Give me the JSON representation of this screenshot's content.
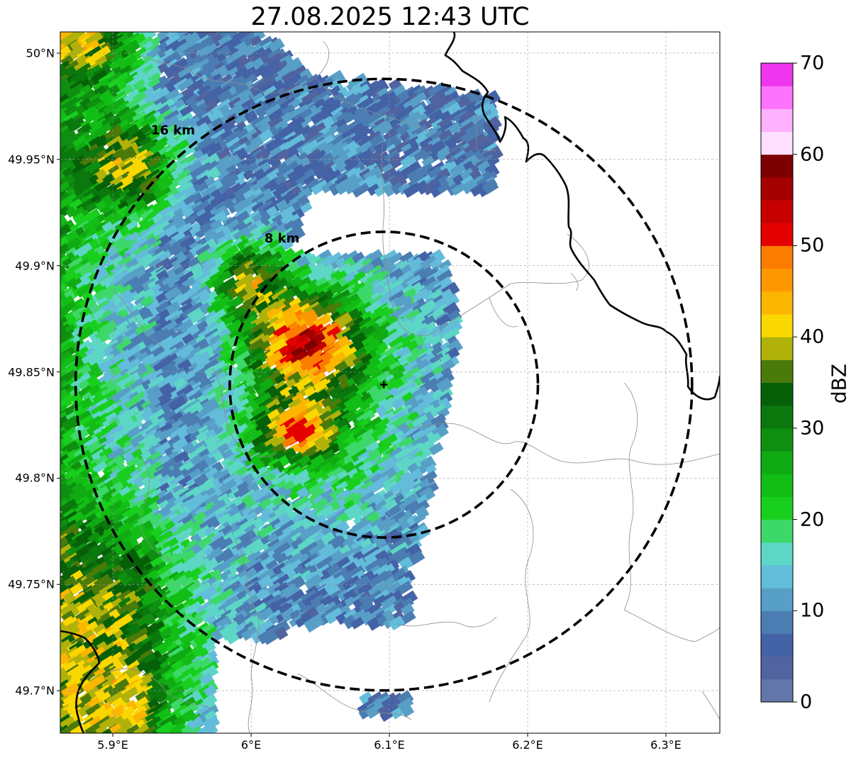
{
  "title": "27.08.2025 12:43 UTC",
  "map": {
    "lon_range": [
      5.862,
      6.339
    ],
    "lat_range": [
      49.68,
      50.01
    ],
    "lon_ticks": [
      {
        "value": 5.9,
        "label": "5.9°E"
      },
      {
        "value": 6.0,
        "label": "6°E"
      },
      {
        "value": 6.1,
        "label": "6.1°E"
      },
      {
        "value": 6.2,
        "label": "6.2°E"
      },
      {
        "value": 6.3,
        "label": "6.3°E"
      }
    ],
    "lat_ticks": [
      {
        "value": 50.0,
        "label": "50°N"
      },
      {
        "value": 49.95,
        "label": "49.95°N"
      },
      {
        "value": 49.9,
        "label": "49.9°N"
      },
      {
        "value": 49.85,
        "label": "49.85°N"
      },
      {
        "value": 49.8,
        "label": "49.8°N"
      },
      {
        "value": 49.75,
        "label": "49.75°N"
      },
      {
        "value": 49.7,
        "label": "49.7°N"
      }
    ],
    "gridlines": true,
    "radar_site": {
      "lon": 6.096,
      "lat": 49.844
    },
    "range_rings": [
      {
        "radius_km": 8,
        "label": "8 km"
      },
      {
        "radius_km": 16,
        "label": "16 km"
      }
    ]
  },
  "colorbar": {
    "unit": "dBZ",
    "min": 0,
    "max": 70,
    "step": 2.5,
    "tick_values": [
      0,
      10,
      20,
      30,
      40,
      50,
      60,
      70
    ],
    "tick_labels": [
      "0",
      "10",
      "20",
      "30",
      "40",
      "50",
      "60",
      "70"
    ],
    "colors": [
      "#6276aa",
      "#51649f",
      "#4462a6",
      "#4b7db2",
      "#589fc7",
      "#63bcda",
      "#5dd6c6",
      "#3dd86a",
      "#18cf1e",
      "#12bd16",
      "#10aa12",
      "#0e8f10",
      "#0b780d",
      "#066008",
      "#4a7a0a",
      "#b0b20a",
      "#fbd700",
      "#fcb600",
      "#fc9700",
      "#fc7c00",
      "#e50000",
      "#c60000",
      "#a40000",
      "#7d0000",
      "#fee0fe",
      "#feb1fe",
      "#fe73fe",
      "#ef36ef"
    ]
  }
}
